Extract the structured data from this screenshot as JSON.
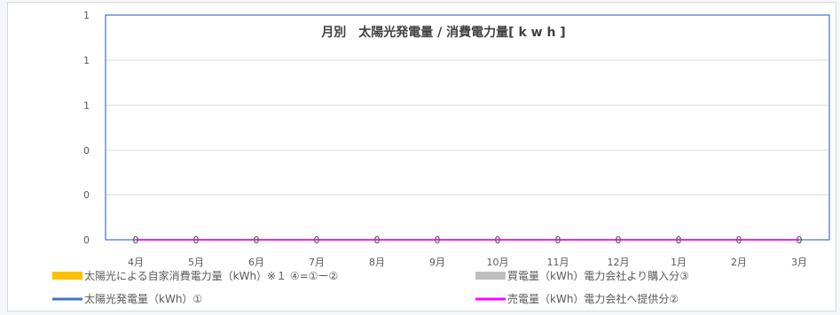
{
  "chart_data": {
    "type": "bar",
    "title": "月別　太陽光発電量 / 消費電力量[ k w h ]",
    "categories": [
      "4月",
      "5月",
      "6月",
      "7月",
      "8月",
      "9月",
      "10月",
      "11月",
      "12月",
      "1月",
      "2月",
      "3月"
    ],
    "y_tick_labels": [
      "0",
      "0",
      "0",
      "1",
      "1",
      "1"
    ],
    "ylim": [
      0,
      1
    ],
    "grid": true,
    "series": [
      {
        "name": "太陽光による自家消費電力量（kWh）※１ ④=①ー②",
        "kind": "bar",
        "color": "#ffc000",
        "values": [
          0,
          0,
          0,
          0,
          0,
          0,
          0,
          0,
          0,
          0,
          0,
          0
        ]
      },
      {
        "name": "買電量（kWh）電力会社より購入分③",
        "kind": "bar",
        "color": "#bfbfbf",
        "values": [
          0,
          0,
          0,
          0,
          0,
          0,
          0,
          0,
          0,
          0,
          0,
          0
        ]
      },
      {
        "name": "太陽光発電量（kWh）①",
        "kind": "line",
        "color": "#4472c4",
        "values": [
          0,
          0,
          0,
          0,
          0,
          0,
          0,
          0,
          0,
          0,
          0,
          0
        ]
      },
      {
        "name": "売電量（kWh）電力会社へ提供分②",
        "kind": "line",
        "color": "#ff00ff",
        "values": [
          0,
          0,
          0,
          0,
          0,
          0,
          0,
          0,
          0,
          0,
          0,
          0
        ]
      }
    ],
    "data_labels": [
      "0",
      "0",
      "0",
      "0",
      "0",
      "0",
      "0",
      "0",
      "0",
      "0",
      "0",
      "0"
    ],
    "legend_position": "bottom"
  }
}
